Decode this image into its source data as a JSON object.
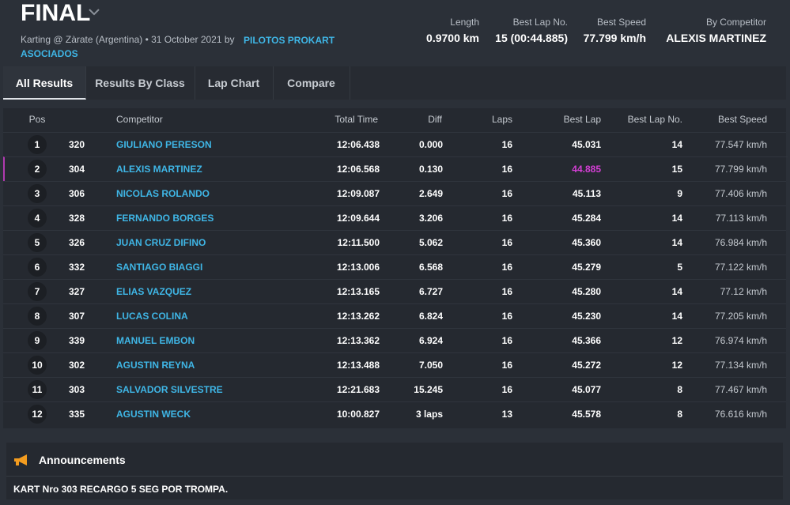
{
  "header": {
    "title": "FINAL",
    "subtitle": "Karting @ Zàrate (Argentina) • 31 October 2021 by",
    "organizer": "PILOTOS PROKART ASOCIADOS",
    "stats": [
      {
        "label": "Length",
        "value": "0.9700 km"
      },
      {
        "label": "Best Lap No.",
        "value": "15 (00:44.885)"
      },
      {
        "label": "Best Speed",
        "value": "77.799 km/h"
      },
      {
        "label": "By Competitor",
        "value": "ALEXIS MARTINEZ"
      }
    ]
  },
  "tabs": [
    "All Results",
    "Results By Class",
    "Lap Chart",
    "Compare"
  ],
  "table": {
    "columns": [
      "Pos",
      "Competitor",
      "Total Time",
      "Diff",
      "Laps",
      "Best Lap",
      "Best Lap No.",
      "Best Speed"
    ],
    "rows": [
      [
        "1",
        "320",
        "GIULIANO PERESON",
        "12:06.438",
        "0.000",
        "16",
        "45.031",
        "14",
        "77.547 km/h"
      ],
      [
        "2",
        "304",
        "ALEXIS MARTINEZ",
        "12:06.568",
        "0.130",
        "16",
        "44.885",
        "15",
        "77.799 km/h"
      ],
      [
        "3",
        "306",
        "NICOLAS ROLANDO",
        "12:09.087",
        "2.649",
        "16",
        "45.113",
        "9",
        "77.406 km/h"
      ],
      [
        "4",
        "328",
        "FERNANDO BORGES",
        "12:09.644",
        "3.206",
        "16",
        "45.284",
        "14",
        "77.113 km/h"
      ],
      [
        "5",
        "326",
        "JUAN CRUZ DIFINO",
        "12:11.500",
        "5.062",
        "16",
        "45.360",
        "14",
        "76.984 km/h"
      ],
      [
        "6",
        "332",
        "SANTIAGO BIAGGI",
        "12:13.006",
        "6.568",
        "16",
        "45.279",
        "5",
        "77.122 km/h"
      ],
      [
        "7",
        "327",
        "ELIAS VAZQUEZ",
        "12:13.165",
        "6.727",
        "16",
        "45.280",
        "14",
        "77.12 km/h"
      ],
      [
        "8",
        "307",
        "LUCAS COLINA",
        "12:13.262",
        "6.824",
        "16",
        "45.230",
        "14",
        "77.205 km/h"
      ],
      [
        "9",
        "339",
        "MANUEL EMBON",
        "12:13.362",
        "6.924",
        "16",
        "45.366",
        "12",
        "76.974 km/h"
      ],
      [
        "10",
        "302",
        "AGUSTIN REYNA",
        "12:13.488",
        "7.050",
        "16",
        "45.272",
        "12",
        "77.134 km/h"
      ],
      [
        "11",
        "303",
        "SALVADOR SILVESTRE",
        "12:21.683",
        "15.245",
        "16",
        "45.077",
        "8",
        "77.467 km/h"
      ],
      [
        "12",
        "335",
        "AGUSTIN WECK",
        "10:00.827",
        "3 laps",
        "13",
        "45.578",
        "8",
        "76.616 km/h"
      ]
    ]
  },
  "announcements": {
    "title": "Announcements",
    "items": [
      "KART Nro 303 RECARGO 5 SEG POR TROMPA."
    ]
  }
}
